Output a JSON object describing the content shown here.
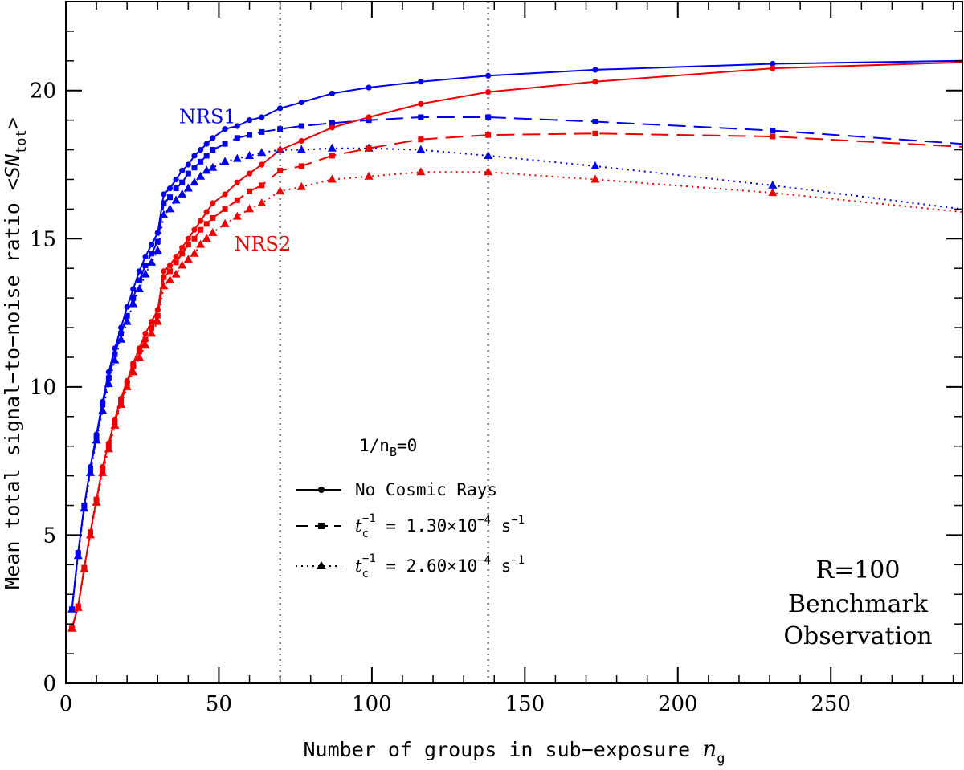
{
  "chart_data": {
    "type": "line",
    "title": "",
    "xlabel": "Number of groups in sub−exposure",
    "xlabel_symbol": "n",
    "xlabel_subscript": "g",
    "ylabel": "Mean total signal−to−noise ratio",
    "ylabel_symbol": "<SN",
    "ylabel_subscript": "tot",
    "ylabel_close": ">",
    "xlim": [
      0,
      293
    ],
    "ylim": [
      0,
      23
    ],
    "xticks": [
      0,
      50,
      100,
      150,
      200,
      250
    ],
    "yticks": [
      0,
      5,
      10,
      15,
      20
    ],
    "vlines": [
      70,
      138
    ],
    "detector_labels": [
      {
        "name": "NRS1",
        "color": "#0000ee",
        "x": 37,
        "y": 18.9
      },
      {
        "name": "NRS2",
        "color": "#ee0000",
        "x": 55,
        "y": 14.6
      }
    ],
    "legend": {
      "header": "1/n",
      "header_sub": "B",
      "header_tail": "=0",
      "entries": [
        {
          "label": "No Cosmic Rays",
          "style": "solid",
          "marker": "circle"
        },
        {
          "label": "t_c^-1 = 1.30×10^-4 s^-1",
          "symbol": "t",
          "sub": "c",
          "sup": "−1",
          "eq": " = 1.30×10",
          "exp": "−4",
          "unit": " s",
          "unit_sup": "−1",
          "style": "dashed",
          "marker": "square"
        },
        {
          "label": "t_c^-1 = 2.60×10^-4 s^-1",
          "symbol": "t",
          "sub": "c",
          "sup": "−1",
          "eq": " = 2.60×10",
          "exp": "−4",
          "unit": " s",
          "unit_sup": "−1",
          "style": "dotted",
          "marker": "triangle"
        }
      ]
    },
    "annotation": [
      "R=100",
      "Benchmark",
      "Observation"
    ],
    "series": [
      {
        "name": "NRS1 No Cosmic Rays",
        "detector": "NRS1",
        "color": "#0000ee",
        "style": "solid",
        "marker": "circle",
        "x": [
          2,
          4,
          6,
          8,
          10,
          12,
          14,
          16,
          18,
          20,
          22,
          24,
          26,
          28,
          30,
          32,
          34,
          36,
          38,
          40,
          42,
          44,
          46,
          48,
          52,
          56,
          60,
          64,
          70,
          77,
          87,
          99,
          116,
          138,
          173,
          231,
          293
        ],
        "y": [
          2.5,
          4.4,
          6.0,
          7.3,
          8.4,
          9.5,
          10.5,
          11.3,
          12.0,
          12.7,
          13.3,
          13.9,
          14.4,
          14.8,
          15.2,
          16.5,
          16.7,
          17.0,
          17.3,
          17.5,
          17.8,
          18.0,
          18.2,
          18.4,
          18.7,
          18.8,
          19.0,
          19.1,
          19.4,
          19.6,
          19.9,
          20.1,
          20.3,
          20.5,
          20.7,
          20.9,
          21.0
        ]
      },
      {
        "name": "NRS1 tc 1.30e-4",
        "detector": "NRS1",
        "color": "#0000ee",
        "style": "dashed",
        "marker": "square",
        "x": [
          2,
          4,
          6,
          8,
          10,
          12,
          14,
          16,
          18,
          20,
          22,
          24,
          26,
          28,
          30,
          32,
          34,
          36,
          38,
          40,
          42,
          44,
          46,
          48,
          52,
          56,
          60,
          64,
          70,
          77,
          87,
          99,
          116,
          138,
          173,
          231,
          293
        ],
        "y": [
          2.5,
          4.4,
          6.0,
          7.2,
          8.3,
          9.4,
          10.3,
          11.1,
          11.8,
          12.4,
          13.0,
          13.6,
          14.1,
          14.5,
          14.9,
          16.2,
          16.4,
          16.7,
          16.9,
          17.2,
          17.4,
          17.6,
          17.8,
          18.0,
          18.2,
          18.4,
          18.5,
          18.6,
          18.7,
          18.8,
          18.9,
          19.0,
          19.1,
          19.1,
          18.95,
          18.65,
          18.2
        ]
      },
      {
        "name": "NRS1 tc 2.60e-4",
        "detector": "NRS1",
        "color": "#0000ee",
        "style": "dotted",
        "marker": "triangle",
        "x": [
          2,
          4,
          6,
          8,
          10,
          12,
          14,
          16,
          18,
          20,
          22,
          24,
          26,
          28,
          30,
          32,
          34,
          36,
          38,
          40,
          42,
          44,
          46,
          48,
          52,
          56,
          60,
          64,
          70,
          77,
          87,
          99,
          116,
          138,
          173,
          231,
          293
        ],
        "y": [
          2.5,
          4.3,
          5.9,
          7.1,
          8.2,
          9.2,
          10.1,
          10.9,
          11.6,
          12.2,
          12.8,
          13.3,
          13.8,
          14.2,
          14.6,
          15.8,
          16.0,
          16.3,
          16.5,
          16.7,
          16.9,
          17.1,
          17.3,
          17.4,
          17.6,
          17.7,
          17.8,
          17.9,
          18.0,
          18.0,
          18.05,
          18.05,
          18.0,
          17.8,
          17.45,
          16.8,
          16.0
        ]
      },
      {
        "name": "NRS2 No Cosmic Rays",
        "detector": "NRS2",
        "color": "#ee0000",
        "style": "solid",
        "marker": "circle",
        "x": [
          2,
          4,
          6,
          8,
          10,
          12,
          14,
          16,
          18,
          20,
          22,
          24,
          26,
          28,
          30,
          32,
          34,
          36,
          38,
          40,
          42,
          44,
          46,
          48,
          52,
          56,
          60,
          64,
          70,
          77,
          87,
          99,
          116,
          138,
          173,
          231,
          293
        ],
        "y": [
          1.85,
          2.6,
          3.9,
          5.1,
          6.2,
          7.3,
          8.1,
          8.9,
          9.6,
          10.2,
          10.8,
          11.3,
          11.8,
          12.2,
          12.6,
          13.9,
          14.1,
          14.4,
          14.7,
          15.0,
          15.3,
          15.6,
          15.9,
          16.2,
          16.5,
          16.9,
          17.2,
          17.5,
          18.0,
          18.3,
          18.75,
          19.1,
          19.55,
          19.95,
          20.3,
          20.75,
          20.95
        ]
      },
      {
        "name": "NRS2 tc 1.30e-4",
        "detector": "NRS2",
        "color": "#ee0000",
        "style": "dashed",
        "marker": "square",
        "x": [
          2,
          4,
          6,
          8,
          10,
          12,
          14,
          16,
          18,
          20,
          22,
          24,
          26,
          28,
          30,
          32,
          34,
          36,
          38,
          40,
          42,
          44,
          46,
          48,
          52,
          56,
          60,
          64,
          70,
          77,
          87,
          99,
          116,
          138,
          173,
          231,
          293
        ],
        "y": [
          1.85,
          2.6,
          3.9,
          5.1,
          6.2,
          7.2,
          8.0,
          8.8,
          9.5,
          10.1,
          10.7,
          11.2,
          11.6,
          12.0,
          12.4,
          13.7,
          13.9,
          14.2,
          14.5,
          14.8,
          15.0,
          15.3,
          15.5,
          15.7,
          16.0,
          16.3,
          16.6,
          16.8,
          17.3,
          17.45,
          17.8,
          18.05,
          18.35,
          18.5,
          18.55,
          18.45,
          18.1
        ]
      },
      {
        "name": "NRS2 tc 2.60e-4",
        "detector": "NRS2",
        "color": "#ee0000",
        "style": "dotted",
        "marker": "triangle",
        "x": [
          2,
          4,
          6,
          8,
          10,
          12,
          14,
          16,
          18,
          20,
          22,
          24,
          26,
          28,
          30,
          32,
          34,
          36,
          38,
          40,
          42,
          44,
          46,
          48,
          52,
          56,
          60,
          64,
          70,
          77,
          87,
          99,
          116,
          138,
          173,
          231,
          293
        ],
        "y": [
          1.85,
          2.55,
          3.85,
          5.0,
          6.1,
          7.1,
          7.9,
          8.7,
          9.4,
          10.0,
          10.5,
          11.0,
          11.4,
          11.8,
          12.2,
          13.4,
          13.6,
          13.8,
          14.1,
          14.3,
          14.5,
          14.8,
          15.0,
          15.2,
          15.5,
          15.75,
          16.0,
          16.2,
          16.6,
          16.75,
          17.0,
          17.1,
          17.25,
          17.25,
          17.0,
          16.55,
          15.9
        ]
      }
    ]
  }
}
